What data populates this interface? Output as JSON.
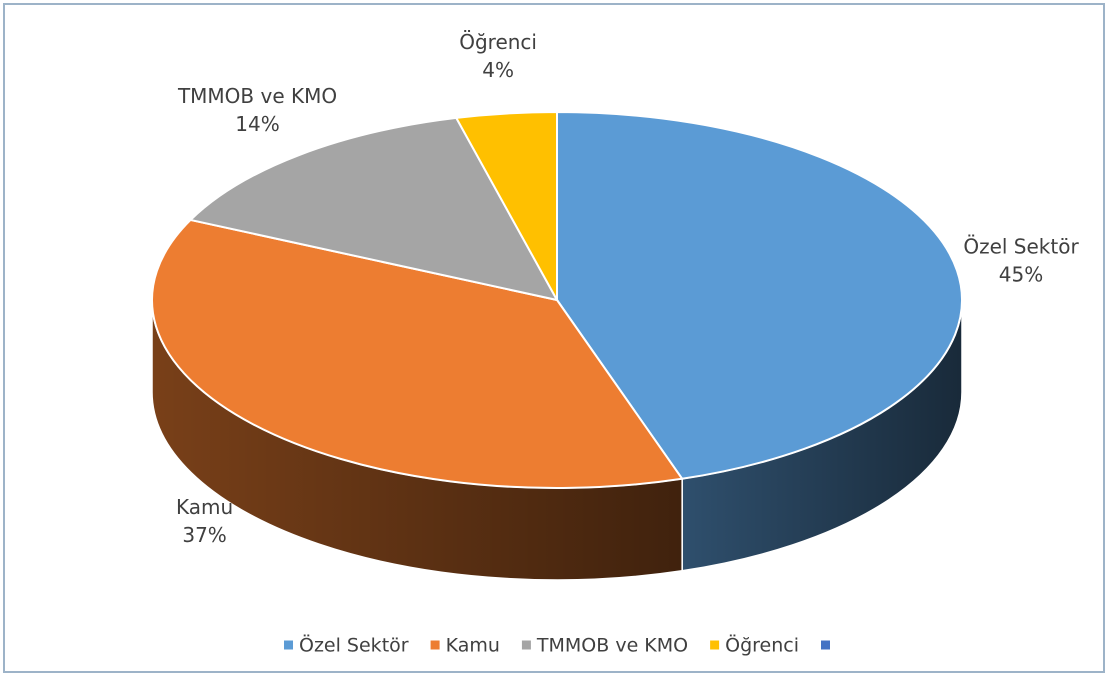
{
  "chart_data": {
    "type": "pie3d",
    "categories": [
      "Özel Sektör",
      "Kamu",
      "TMMOB ve KMO",
      "Öğrenci",
      null
    ],
    "values": [
      45,
      37,
      14,
      4,
      null
    ],
    "value_labels": [
      "45%",
      "37%",
      "14%",
      "4%",
      null
    ],
    "colors": [
      "#5b9bd5",
      "#ed7d31",
      "#a5a5a5",
      "#ffc000",
      "#4472c4"
    ],
    "legend": "bottom"
  }
}
